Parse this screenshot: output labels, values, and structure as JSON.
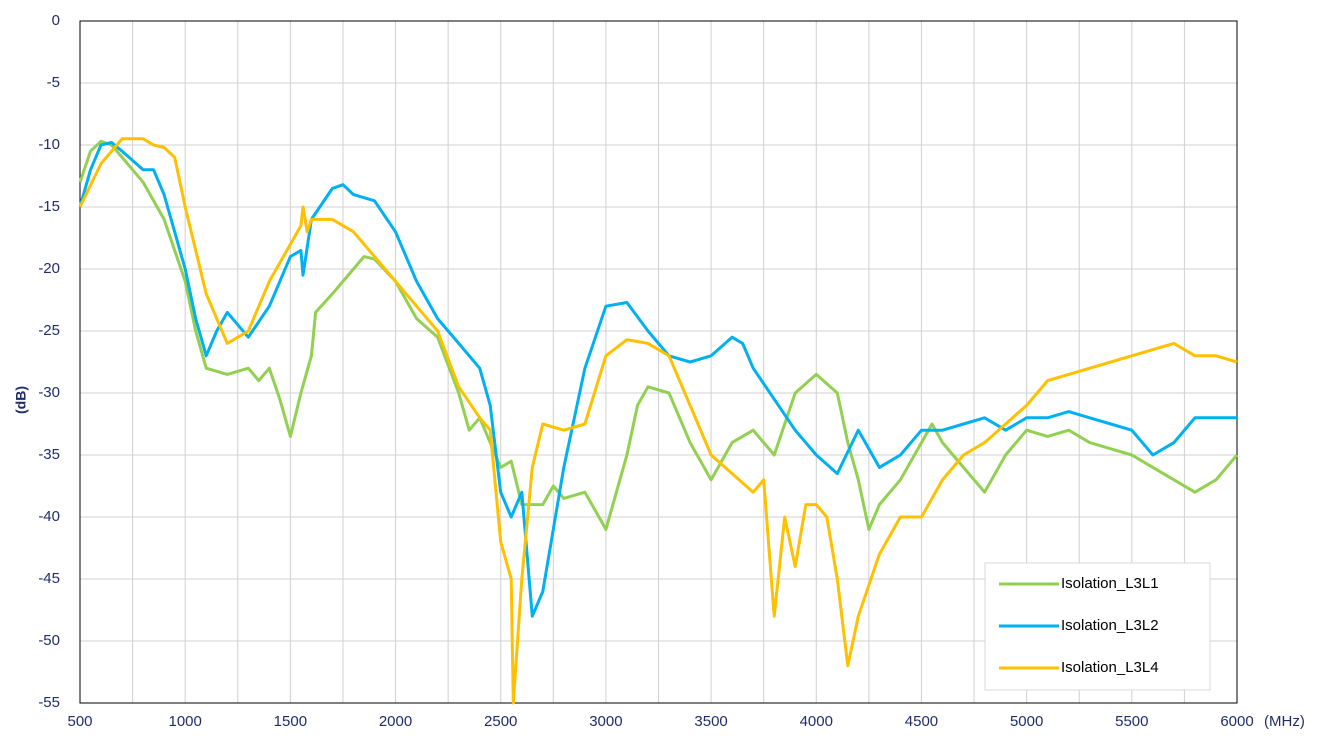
{
  "chart_data": {
    "type": "line",
    "ylabel": "(dB)",
    "xlabel": "(MHz)",
    "xlim": [
      500,
      6000
    ],
    "ylim": [
      -55,
      0
    ],
    "xticks": [
      500,
      1000,
      1500,
      2000,
      2500,
      3000,
      3500,
      4000,
      4500,
      5000,
      5500,
      6000
    ],
    "xminorticks": [
      750,
      1250,
      1750,
      2250,
      2750,
      3250,
      3750,
      4250,
      4750,
      5250,
      5750
    ],
    "yticks": [
      0,
      -5,
      -10,
      -15,
      -20,
      -25,
      -30,
      -35,
      -40,
      -45,
      -50,
      -55
    ],
    "grid": true,
    "legend": "lower right",
    "series": [
      {
        "name": "Isolation_L3L1",
        "color": "#92d050",
        "x": [
          500,
          550,
          600,
          650,
          700,
          800,
          900,
          1000,
          1050,
          1100,
          1200,
          1300,
          1350,
          1400,
          1450,
          1500,
          1550,
          1600,
          1620,
          1700,
          1800,
          1850,
          1900,
          2000,
          2100,
          2200,
          2300,
          2350,
          2400,
          2500,
          2550,
          2600,
          2700,
          2750,
          2800,
          2900,
          3000,
          3050,
          3100,
          3150,
          3200,
          3300,
          3400,
          3500,
          3600,
          3700,
          3800,
          3900,
          4000,
          4100,
          4150,
          4200,
          4250,
          4300,
          4400,
          4500,
          4550,
          4600,
          4700,
          4800,
          4900,
          5000,
          5100,
          5200,
          5300,
          5400,
          5500,
          5600,
          5700,
          5800,
          5900,
          6000
        ],
        "values": [
          -13,
          -10.5,
          -9.7,
          -10,
          -11,
          -13,
          -16,
          -21,
          -25,
          -28,
          -28.5,
          -28,
          -29,
          -28,
          -30.5,
          -33.5,
          -30,
          -27,
          -23.5,
          -22,
          -20,
          -19,
          -19.2,
          -21,
          -24,
          -25.5,
          -30,
          -33,
          -32,
          -36,
          -35.5,
          -39,
          -39,
          -37.5,
          -38.5,
          -38,
          -41,
          -38,
          -35,
          -31,
          -29.5,
          -30,
          -34,
          -37,
          -34,
          -33,
          -35,
          -30,
          -28.5,
          -30,
          -34,
          -37,
          -41,
          -39,
          -37,
          -34,
          -32.5,
          -34,
          -36,
          -38,
          -35,
          -33,
          -33.5,
          -33,
          -34,
          -34.5,
          -35,
          -36,
          -37,
          -38,
          -37,
          -35
        ]
      },
      {
        "name": "Isolation_L3L2",
        "color": "#00b0f0",
        "x": [
          500,
          550,
          600,
          650,
          700,
          800,
          850,
          900,
          1000,
          1050,
          1100,
          1150,
          1200,
          1250,
          1300,
          1400,
          1500,
          1550,
          1560,
          1600,
          1700,
          1750,
          1800,
          1900,
          2000,
          2100,
          2200,
          2300,
          2400,
          2450,
          2500,
          2550,
          2600,
          2650,
          2700,
          2800,
          2900,
          3000,
          3100,
          3200,
          3300,
          3400,
          3500,
          3600,
          3650,
          3700,
          3800,
          3900,
          4000,
          4100,
          4200,
          4300,
          4400,
          4500,
          4600,
          4700,
          4800,
          4900,
          5000,
          5100,
          5200,
          5300,
          5400,
          5500,
          5600,
          5700,
          5800,
          5900,
          6000
        ],
        "values": [
          -15,
          -12,
          -10,
          -9.8,
          -10.5,
          -12,
          -12,
          -14,
          -20,
          -24,
          -27,
          -25,
          -23.5,
          -24.5,
          -25.5,
          -23,
          -19,
          -18.5,
          -20.5,
          -16,
          -13.5,
          -13.2,
          -14,
          -14.5,
          -17,
          -21,
          -24,
          -26,
          -28,
          -31,
          -38,
          -40,
          -38,
          -48,
          -46,
          -36,
          -28,
          -23,
          -22.7,
          -25,
          -27,
          -27.5,
          -27,
          -25.5,
          -26,
          -28,
          -30.5,
          -33,
          -35,
          -36.5,
          -33,
          -36,
          -35,
          -33,
          -33,
          -32.5,
          -32,
          -33,
          -32,
          -32,
          -31.5,
          -32,
          -32.5,
          -33,
          -35,
          -34,
          -32,
          -32,
          -32
        ]
      },
      {
        "name": "Isolation_L3L4",
        "color": "#ffc000",
        "x": [
          500,
          600,
          700,
          800,
          850,
          900,
          950,
          1000,
          1100,
          1200,
          1300,
          1400,
          1500,
          1550,
          1560,
          1580,
          1600,
          1700,
          1800,
          1900,
          2000,
          2100,
          2200,
          2300,
          2400,
          2450,
          2500,
          2550,
          2560,
          2600,
          2650,
          2700,
          2800,
          2900,
          3000,
          3100,
          3200,
          3300,
          3400,
          3500,
          3600,
          3700,
          3750,
          3800,
          3850,
          3900,
          3950,
          4000,
          4050,
          4100,
          4150,
          4200,
          4300,
          4400,
          4500,
          4600,
          4700,
          4800,
          4900,
          5000,
          5100,
          5200,
          5300,
          5400,
          5500,
          5600,
          5700,
          5800,
          5900,
          6000
        ],
        "values": [
          -15,
          -11.5,
          -9.5,
          -9.5,
          -10,
          -10.2,
          -11,
          -15,
          -22,
          -26,
          -25,
          -21,
          -18,
          -16.5,
          -15,
          -17,
          -16,
          -16,
          -17,
          -19,
          -21,
          -23,
          -25,
          -29.5,
          -32,
          -33,
          -42,
          -45,
          -55,
          -45,
          -36,
          -32.5,
          -33,
          -32.5,
          -27,
          -25.7,
          -26,
          -27,
          -31,
          -35,
          -36.5,
          -38,
          -37,
          -48,
          -40,
          -44,
          -39,
          -39,
          -40,
          -45,
          -52,
          -48,
          -43,
          -40,
          -40,
          -37,
          -35,
          -34,
          -32.5,
          -31,
          -29,
          -28.5,
          -28,
          -27.5,
          -27,
          -26.5,
          -26,
          -27,
          -27,
          -27.5
        ]
      }
    ]
  }
}
